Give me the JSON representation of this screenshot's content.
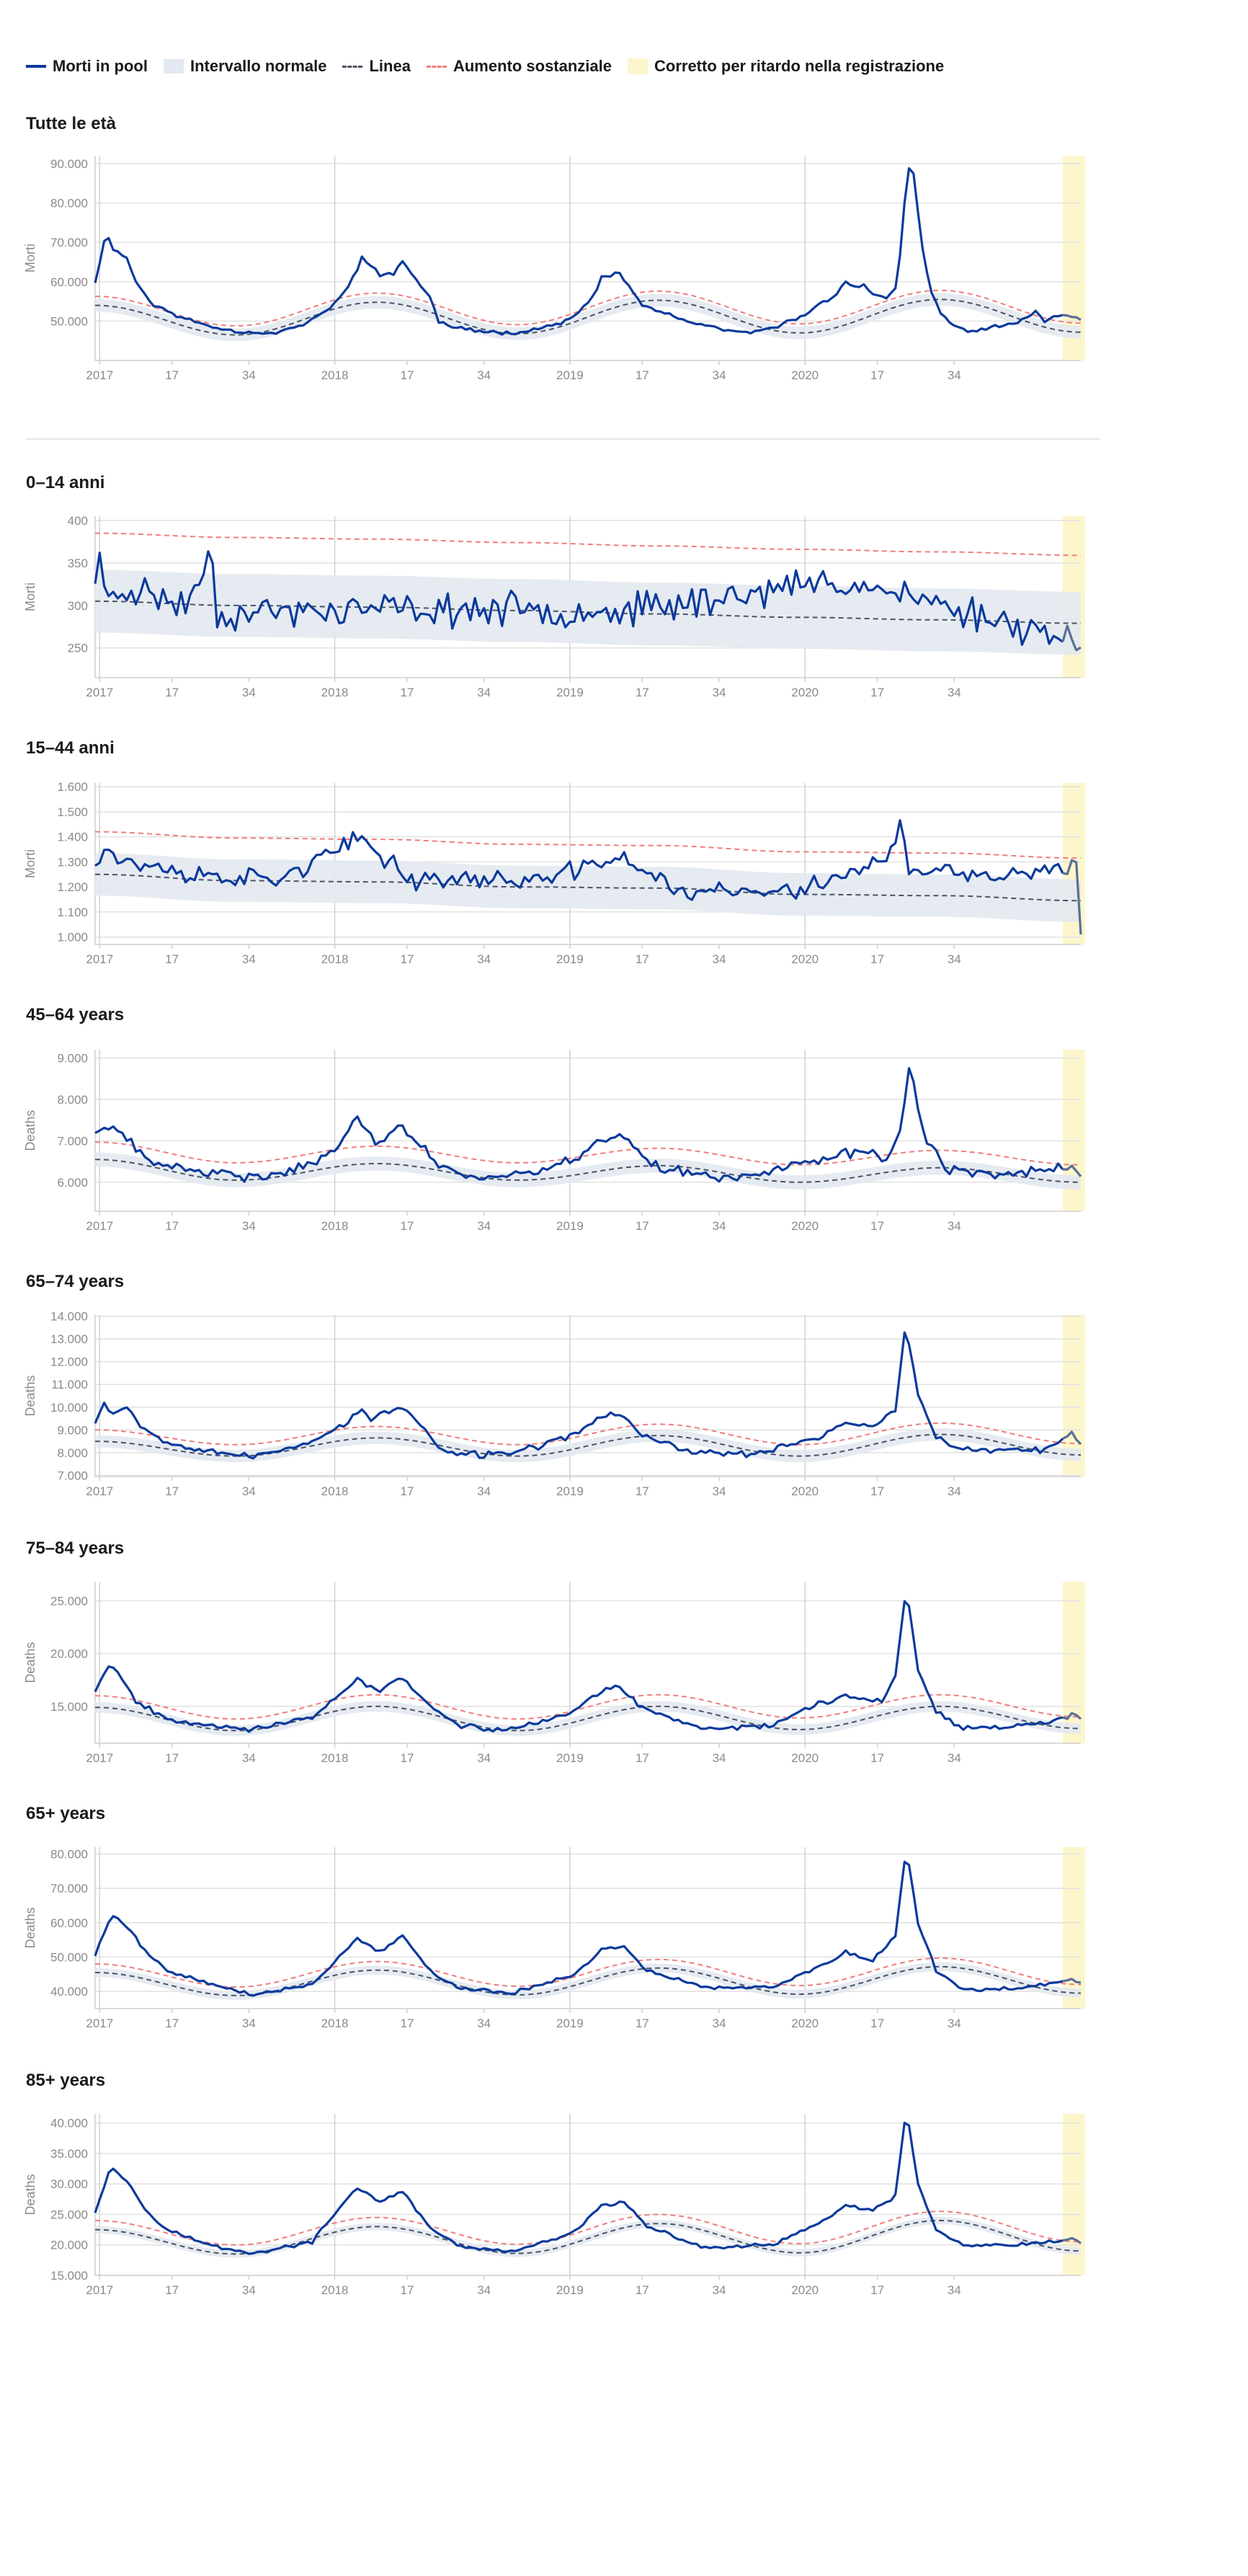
{
  "legend": {
    "observed": "Morti in pool",
    "normal_range": "Intervallo normale",
    "baseline": "Linea",
    "substantial_increase": "Aumento sostanziale",
    "delay_corrected": "Corretto per ritardo nella registrazione"
  },
  "colors": {
    "observed": "#0b3a9c",
    "band": "#e3e9f0",
    "baseline": "#4a5366",
    "threshold": "#ef7d7d",
    "delay": "#fdf6cc",
    "grid": "#e1e1e1",
    "tick": "#8a8a8a"
  },
  "x_axis": {
    "tick_labels": [
      "2017",
      "17",
      "34",
      "2018",
      "17",
      "34",
      "2019",
      "17",
      "34",
      "2020",
      "17",
      "34"
    ],
    "start": "2016 week 52",
    "end": "2020 week 45",
    "delay_corrected_from_week": "2020 week 41"
  },
  "chart_data": [
    {
      "type": "line",
      "title": "Tutte le età",
      "ylabel": "Morti",
      "ylim": [
        40000,
        92000
      ],
      "yticks": [
        "50.000",
        "60.000",
        "70.000",
        "80.000",
        "90.000"
      ],
      "ytick_values": [
        50000,
        60000,
        70000,
        80000,
        90000
      ],
      "baseline_anchors": [
        54000,
        46500,
        54800,
        46800,
        55300,
        47000,
        55500,
        47200
      ],
      "band_half": 1600,
      "threshold_offset": 2300,
      "observed_anchors": [
        [
          0,
          60000
        ],
        [
          2,
          70000
        ],
        [
          3,
          71200
        ],
        [
          4,
          68500
        ],
        [
          7,
          66000
        ],
        [
          9,
          60000
        ],
        [
          13,
          54000
        ],
        [
          20,
          50500
        ],
        [
          28,
          48000
        ],
        [
          33,
          47200
        ],
        [
          40,
          47000
        ],
        [
          47,
          49500
        ],
        [
          52,
          53500
        ],
        [
          55,
          57000
        ],
        [
          58,
          63000
        ],
        [
          59,
          66500
        ],
        [
          61,
          64500
        ],
        [
          63,
          61500
        ],
        [
          66,
          62000
        ],
        [
          68,
          65500
        ],
        [
          70,
          62000
        ],
        [
          74,
          56000
        ],
        [
          76,
          50000
        ],
        [
          79,
          48500
        ],
        [
          84,
          47500
        ],
        [
          92,
          47000
        ],
        [
          100,
          48500
        ],
        [
          106,
          51000
        ],
        [
          110,
          56000
        ],
        [
          112,
          61000
        ],
        [
          116,
          62000
        ],
        [
          118,
          59000
        ],
        [
          121,
          54000
        ],
        [
          126,
          52000
        ],
        [
          132,
          49500
        ],
        [
          140,
          47500
        ],
        [
          146,
          47000
        ],
        [
          150,
          48500
        ],
        [
          155,
          50500
        ],
        [
          160,
          54000
        ],
        [
          163,
          56000
        ],
        [
          166,
          60000
        ],
        [
          168,
          58500
        ],
        [
          170,
          59000
        ],
        [
          172,
          57000
        ],
        [
          175,
          56000
        ],
        [
          177,
          58000
        ],
        [
          178,
          67000
        ],
        [
          179,
          80000
        ],
        [
          180,
          88500
        ],
        [
          181,
          87000
        ],
        [
          183,
          68000
        ],
        [
          185,
          57000
        ],
        [
          187,
          52000
        ],
        [
          190,
          48500
        ],
        [
          194,
          47500
        ],
        [
          199,
          48500
        ],
        [
          203,
          49000
        ],
        [
          206,
          51000
        ],
        [
          208,
          53000
        ],
        [
          210,
          50000
        ],
        [
          213,
          51500
        ],
        [
          216,
          51500
        ],
        [
          218,
          50500
        ]
      ],
      "noise": 600,
      "seed": 11
    },
    {
      "type": "line",
      "title": "0–14 anni",
      "ylabel": "Morti",
      "ylim": [
        215,
        405
      ],
      "yticks": [
        "250",
        "300",
        "350",
        "400"
      ],
      "ytick_values": [
        250,
        300,
        350,
        400
      ],
      "baseline_anchors": [
        305,
        300,
        298,
        294,
        290,
        286,
        283,
        279
      ],
      "band_half": 37,
      "threshold_offset": 80,
      "observed_anchors": [
        [
          0,
          335
        ],
        [
          1,
          360
        ],
        [
          2,
          310
        ],
        [
          8,
          320
        ],
        [
          20,
          300
        ],
        [
          26,
          362
        ],
        [
          27,
          290
        ],
        [
          60,
          295
        ],
        [
          120,
          295
        ],
        [
          165,
          330
        ],
        [
          210,
          270
        ],
        [
          216,
          262
        ],
        [
          217,
          240
        ],
        [
          218,
          240
        ]
      ],
      "noise": 24,
      "seed": 23
    },
    {
      "type": "line",
      "title": "15–44 anni",
      "ylabel": "Morti",
      "ylim": [
        970,
        1615
      ],
      "yticks": [
        "1.000",
        "1.100",
        "1.200",
        "1.300",
        "1.400",
        "1.500",
        "1.600"
      ],
      "ytick_values": [
        1000,
        1100,
        1200,
        1300,
        1400,
        1500,
        1600
      ],
      "baseline_anchors": [
        1250,
        1225,
        1220,
        1200,
        1195,
        1170,
        1165,
        1145
      ],
      "band_half": 85,
      "threshold_offset": 170,
      "observed_anchors": [
        [
          0,
          1290
        ],
        [
          2,
          1380
        ],
        [
          5,
          1310
        ],
        [
          20,
          1250
        ],
        [
          40,
          1230
        ],
        [
          59,
          1390
        ],
        [
          70,
          1230
        ],
        [
          100,
          1230
        ],
        [
          116,
          1320
        ],
        [
          130,
          1180
        ],
        [
          155,
          1180
        ],
        [
          175,
          1310
        ],
        [
          178,
          1440
        ],
        [
          180,
          1260
        ],
        [
          200,
          1240
        ],
        [
          216,
          1270
        ],
        [
          217,
          1280
        ],
        [
          218,
          1040
        ]
      ],
      "noise": 48,
      "seed": 37
    },
    {
      "type": "line",
      "title": "45–64 years",
      "ylabel": "Deaths",
      "ylim": [
        5300,
        9200
      ],
      "yticks": [
        "6.000",
        "7.000",
        "8.000",
        "9.000"
      ],
      "ytick_values": [
        6000,
        7000,
        8000,
        9000
      ],
      "baseline_anchors": [
        6550,
        6050,
        6450,
        6050,
        6400,
        6000,
        6350,
        6000
      ],
      "band_half": 170,
      "threshold_offset": 420,
      "observed_anchors": [
        [
          0,
          7150
        ],
        [
          3,
          7400
        ],
        [
          6,
          7100
        ],
        [
          12,
          6500
        ],
        [
          20,
          6300
        ],
        [
          35,
          6100
        ],
        [
          50,
          6500
        ],
        [
          58,
          7500
        ],
        [
          62,
          7000
        ],
        [
          68,
          7350
        ],
        [
          76,
          6400
        ],
        [
          85,
          6100
        ],
        [
          100,
          6300
        ],
        [
          113,
          7000
        ],
        [
          116,
          7200
        ],
        [
          125,
          6300
        ],
        [
          140,
          6100
        ],
        [
          160,
          6500
        ],
        [
          170,
          6800
        ],
        [
          175,
          6500
        ],
        [
          178,
          7300
        ],
        [
          180,
          8800
        ],
        [
          181,
          8500
        ],
        [
          183,
          7200
        ],
        [
          188,
          6300
        ],
        [
          200,
          6200
        ],
        [
          210,
          6300
        ],
        [
          216,
          6400
        ],
        [
          218,
          6200
        ]
      ],
      "noise": 160,
      "seed": 41
    },
    {
      "type": "line",
      "title": "65–74 years",
      "ylabel": "Deaths",
      "ylim": [
        6950,
        14050
      ],
      "yticks": [
        "7.000",
        "8.000",
        "9.000",
        "10.000",
        "11.000",
        "12.000",
        "13.000",
        "14.000"
      ],
      "ytick_values": [
        7000,
        8000,
        9000,
        10000,
        11000,
        12000,
        13000,
        14000
      ],
      "baseline_anchors": [
        8500,
        7850,
        8650,
        7850,
        8750,
        7850,
        8800,
        7900
      ],
      "band_half": 270,
      "threshold_offset": 500,
      "observed_anchors": [
        [
          0,
          9400
        ],
        [
          2,
          10200
        ],
        [
          4,
          9700
        ],
        [
          7,
          10100
        ],
        [
          10,
          9200
        ],
        [
          15,
          8500
        ],
        [
          25,
          8100
        ],
        [
          35,
          7800
        ],
        [
          45,
          8300
        ],
        [
          55,
          9200
        ],
        [
          59,
          9900
        ],
        [
          61,
          9500
        ],
        [
          68,
          10000
        ],
        [
          72,
          9200
        ],
        [
          77,
          8000
        ],
        [
          85,
          7900
        ],
        [
          95,
          8100
        ],
        [
          105,
          8700
        ],
        [
          112,
          9600
        ],
        [
          116,
          9700
        ],
        [
          121,
          8800
        ],
        [
          130,
          8100
        ],
        [
          145,
          7900
        ],
        [
          160,
          8700
        ],
        [
          166,
          9300
        ],
        [
          172,
          9200
        ],
        [
          177,
          9800
        ],
        [
          179,
          13300
        ],
        [
          180,
          12700
        ],
        [
          182,
          10500
        ],
        [
          186,
          8700
        ],
        [
          192,
          8100
        ],
        [
          200,
          8100
        ],
        [
          210,
          8100
        ],
        [
          216,
          8800
        ],
        [
          218,
          8300
        ]
      ],
      "noise": 170,
      "seed": 53
    },
    {
      "type": "line",
      "title": "75–84 years",
      "ylabel": "Deaths",
      "ylim": [
        11500,
        26800
      ],
      "yticks": [
        "15.000",
        "20.000",
        "25.000"
      ],
      "ytick_values": [
        15000,
        20000,
        25000
      ],
      "baseline_anchors": [
        14900,
        12700,
        15000,
        12700,
        15000,
        12800,
        15000,
        12900
      ],
      "band_half": 500,
      "threshold_offset": 1100,
      "observed_anchors": [
        [
          0,
          16500
        ],
        [
          3,
          19000
        ],
        [
          5,
          18300
        ],
        [
          9,
          15500
        ],
        [
          16,
          13800
        ],
        [
          25,
          13300
        ],
        [
          35,
          12800
        ],
        [
          48,
          13900
        ],
        [
          58,
          17500
        ],
        [
          63,
          16500
        ],
        [
          68,
          17800
        ],
        [
          74,
          15000
        ],
        [
          80,
          13200
        ],
        [
          90,
          12700
        ],
        [
          105,
          14300
        ],
        [
          112,
          16500
        ],
        [
          116,
          16800
        ],
        [
          121,
          14800
        ],
        [
          135,
          12800
        ],
        [
          150,
          13300
        ],
        [
          160,
          15200
        ],
        [
          166,
          16000
        ],
        [
          174,
          15500
        ],
        [
          177,
          18000
        ],
        [
          179,
          25000
        ],
        [
          180,
          24500
        ],
        [
          182,
          18500
        ],
        [
          186,
          14500
        ],
        [
          192,
          13000
        ],
        [
          205,
          13200
        ],
        [
          212,
          13500
        ],
        [
          216,
          14200
        ],
        [
          218,
          14000
        ]
      ],
      "noise": 300,
      "seed": 67
    },
    {
      "type": "line",
      "title": "65+ years",
      "ylabel": "Deaths",
      "ylim": [
        35000,
        82000
      ],
      "yticks": [
        "40.000",
        "50.000",
        "60.000",
        "70.000",
        "80.000"
      ],
      "ytick_values": [
        40000,
        50000,
        60000,
        70000,
        80000
      ],
      "baseline_anchors": [
        45500,
        38800,
        46200,
        39000,
        46800,
        39200,
        47200,
        39500
      ],
      "band_half": 1300,
      "threshold_offset": 2500,
      "observed_anchors": [
        [
          0,
          50500
        ],
        [
          3,
          60500
        ],
        [
          4,
          62000
        ],
        [
          7,
          59000
        ],
        [
          11,
          52000
        ],
        [
          16,
          46000
        ],
        [
          25,
          42500
        ],
        [
          35,
          39000
        ],
        [
          48,
          42000
        ],
        [
          58,
          55500
        ],
        [
          63,
          51500
        ],
        [
          68,
          56500
        ],
        [
          74,
          46000
        ],
        [
          80,
          41000
        ],
        [
          92,
          39500
        ],
        [
          106,
          45000
        ],
        [
          112,
          52000
        ],
        [
          117,
          53000
        ],
        [
          122,
          46000
        ],
        [
          135,
          41000
        ],
        [
          150,
          41500
        ],
        [
          160,
          47000
        ],
        [
          166,
          51500
        ],
        [
          172,
          49000
        ],
        [
          177,
          56000
        ],
        [
          179,
          78000
        ],
        [
          180,
          77000
        ],
        [
          182,
          60000
        ],
        [
          186,
          46000
        ],
        [
          192,
          40500
        ],
        [
          205,
          41000
        ],
        [
          212,
          42500
        ],
        [
          216,
          43500
        ],
        [
          218,
          42500
        ]
      ],
      "noise": 650,
      "seed": 79
    },
    {
      "type": "line",
      "title": "85+ years",
      "ylabel": "Deaths",
      "ylim": [
        15000,
        41500
      ],
      "yticks": [
        "15.000",
        "20.000",
        "25.000",
        "30.000",
        "35.000",
        "40.000"
      ],
      "ytick_values": [
        15000,
        20000,
        25000,
        30000,
        35000,
        40000
      ],
      "baseline_anchors": [
        22500,
        18500,
        23000,
        18600,
        23500,
        18700,
        24000,
        19000
      ],
      "band_half": 600,
      "threshold_offset": 1500,
      "observed_anchors": [
        [
          0,
          25500
        ],
        [
          3,
          32000
        ],
        [
          4,
          32500
        ],
        [
          7,
          30500
        ],
        [
          11,
          26000
        ],
        [
          16,
          22500
        ],
        [
          25,
          20000
        ],
        [
          35,
          18600
        ],
        [
          48,
          20500
        ],
        [
          58,
          29500
        ],
        [
          63,
          27000
        ],
        [
          68,
          28700
        ],
        [
          74,
          23000
        ],
        [
          80,
          19800
        ],
        [
          92,
          18800
        ],
        [
          106,
          22000
        ],
        [
          112,
          26500
        ],
        [
          117,
          27000
        ],
        [
          122,
          23000
        ],
        [
          135,
          19500
        ],
        [
          150,
          20000
        ],
        [
          160,
          23500
        ],
        [
          166,
          26500
        ],
        [
          172,
          25500
        ],
        [
          177,
          28000
        ],
        [
          179,
          40000
        ],
        [
          180,
          39500
        ],
        [
          182,
          30000
        ],
        [
          186,
          22500
        ],
        [
          192,
          19800
        ],
        [
          205,
          20000
        ],
        [
          212,
          20500
        ],
        [
          216,
          21000
        ],
        [
          218,
          20500
        ]
      ],
      "noise": 380,
      "seed": 97
    }
  ]
}
